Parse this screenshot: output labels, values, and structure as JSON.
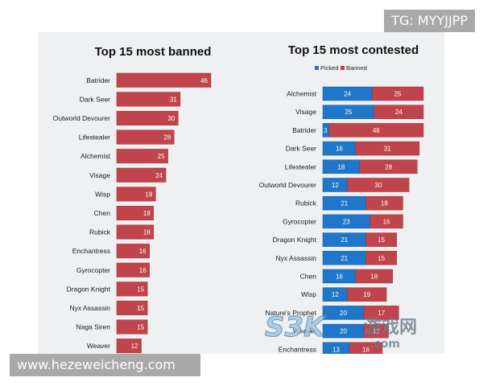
{
  "chart_data": [
    {
      "type": "bar",
      "orientation": "horizontal",
      "title": "Top 15 most banned",
      "categories": [
        "Batrider",
        "Dark Seer",
        "Outworld Devourer",
        "Lifestealer",
        "Alchemist",
        "Visage",
        "Wisp",
        "Chen",
        "Rubick",
        "Enchantress",
        "Gyrocopter",
        "Dragon Knight",
        "Nyx Assassin",
        "Naga Siren",
        "Weaver"
      ],
      "values": [
        46,
        31,
        30,
        28,
        25,
        24,
        19,
        18,
        18,
        16,
        16,
        15,
        15,
        15,
        12
      ],
      "color": "#c0444b",
      "legend": "none",
      "data_labels": true
    },
    {
      "type": "bar",
      "orientation": "horizontal",
      "stacked": true,
      "title": "Top 15 most contested",
      "categories": [
        "Alchemist",
        "Visage",
        "Batrider",
        "Dark Seer",
        "Lifestealer",
        "Outworld Devourer",
        "Rubick",
        "Gyrocopter",
        "Dragon Knight",
        "Nyx Assassin",
        "Chen",
        "Wisp",
        "Nature's Prophet",
        "Weaver",
        "Enchantress"
      ],
      "series": [
        {
          "name": "Picked",
          "color": "#1f77c9",
          "values": [
            24,
            25,
            3,
            16,
            18,
            12,
            21,
            23,
            21,
            21,
            16,
            12,
            20,
            20,
            13
          ]
        },
        {
          "name": "Banned",
          "color": "#c0444b",
          "values": [
            25,
            24,
            46,
            31,
            28,
            30,
            18,
            16,
            15,
            15,
            18,
            19,
            17,
            12,
            16
          ]
        }
      ],
      "legend": "top",
      "data_labels": true
    }
  ],
  "overlays": {
    "tg": "TG: MYYJJPP",
    "url": "www.hezeweicheng.com",
    "watermark_left": "S3K",
    "watermark_cn": "游戏网",
    "watermark_com": ".com"
  }
}
